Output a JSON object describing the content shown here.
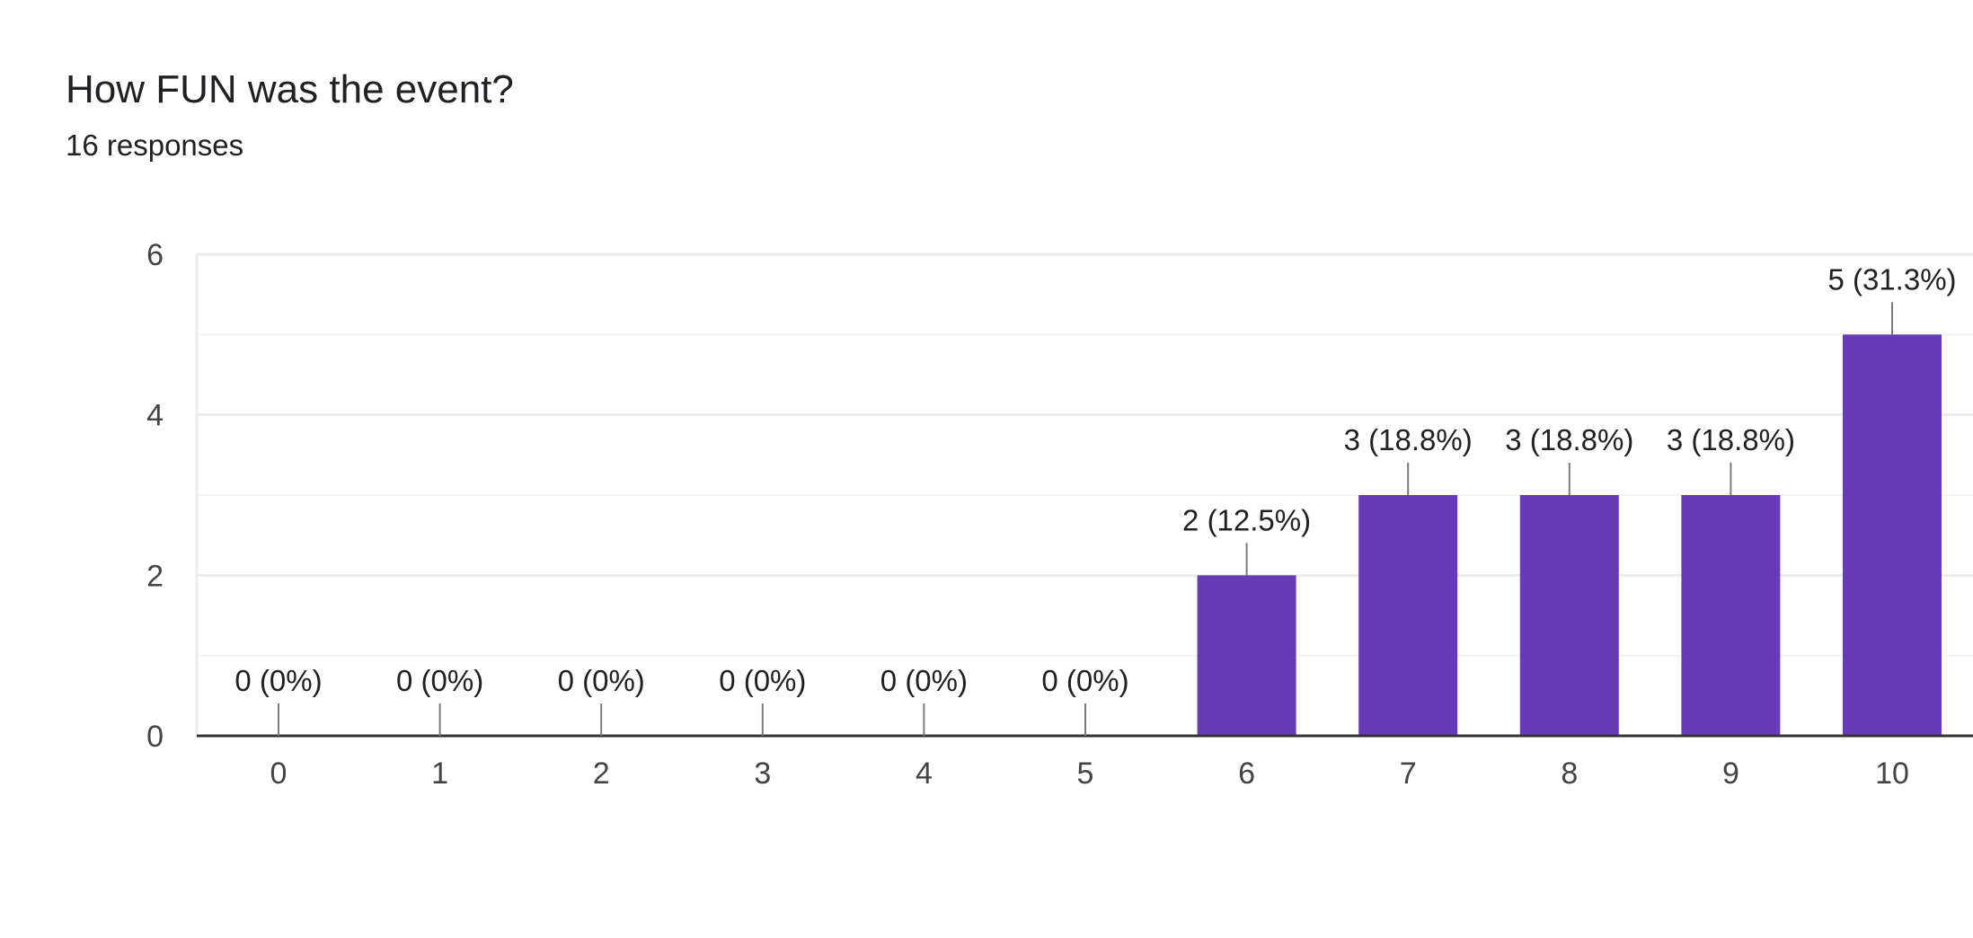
{
  "question": {
    "title": "How FUN was the event?",
    "responses": "16 responses"
  },
  "colors": {
    "bar": "#673ab7",
    "grid": "#ececec",
    "axis": "#333333",
    "leader": "#7a7a7a"
  },
  "chart_data": {
    "type": "bar",
    "title": "How FUN was the event?",
    "xlabel": "",
    "ylabel": "",
    "categories": [
      "0",
      "1",
      "2",
      "3",
      "4",
      "5",
      "6",
      "7",
      "8",
      "9",
      "10"
    ],
    "values": [
      0,
      0,
      0,
      0,
      0,
      0,
      2,
      3,
      3,
      3,
      5
    ],
    "data_labels": [
      "0 (0%)",
      "0 (0%)",
      "0 (0%)",
      "0 (0%)",
      "0 (0%)",
      "0 (0%)",
      "2 (12.5%)",
      "3 (18.8%)",
      "3 (18.8%)",
      "3 (18.8%)",
      "5 (31.3%)"
    ],
    "yticks": [
      0,
      2,
      4,
      6
    ],
    "ylim": [
      0,
      6
    ],
    "grid": true
  }
}
